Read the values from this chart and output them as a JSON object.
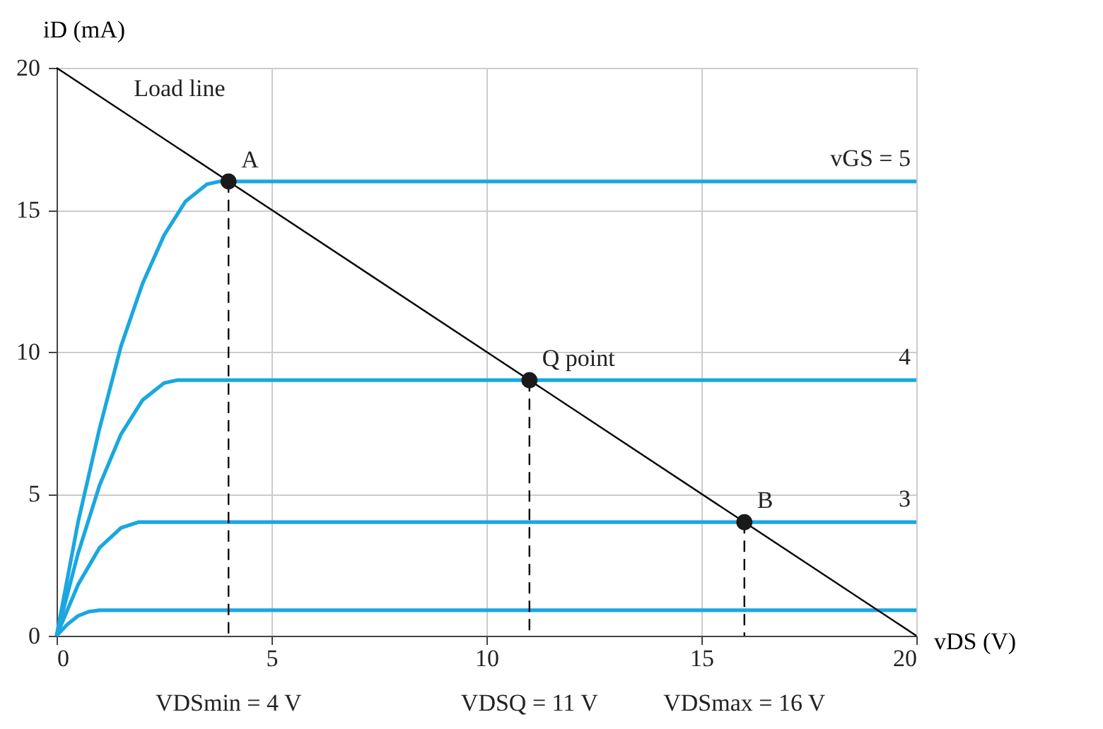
{
  "chart_data": {
    "type": "line",
    "xlabel": "vDS (V)",
    "ylabel": "iD (mA)",
    "xlim": [
      0,
      20
    ],
    "ylim": [
      0,
      20
    ],
    "xticks": [
      0,
      5,
      10,
      15,
      20
    ],
    "yticks": [
      0,
      5,
      10,
      15,
      20
    ],
    "grid": true,
    "marker": "none",
    "series": [
      {
        "name": "vGS = 5",
        "color": "#1aa7e0",
        "x": [
          0,
          0.5,
          1,
          1.5,
          2,
          2.5,
          3,
          3.5,
          3.8,
          20
        ],
        "values": [
          0,
          4,
          7.3,
          10.2,
          12.4,
          14.1,
          15.3,
          15.9,
          16,
          16
        ]
      },
      {
        "name": "4",
        "color": "#1aa7e0",
        "x": [
          0,
          0.5,
          1,
          1.5,
          2,
          2.5,
          2.8,
          20
        ],
        "values": [
          0,
          2.9,
          5.3,
          7.1,
          8.3,
          8.9,
          9,
          9
        ]
      },
      {
        "name": "3",
        "color": "#1aa7e0",
        "x": [
          0,
          0.5,
          1,
          1.5,
          1.9,
          20
        ],
        "values": [
          0,
          1.8,
          3.1,
          3.8,
          4,
          4
        ]
      },
      {
        "color": "#1aa7e0",
        "x": [
          0,
          0.25,
          0.5,
          0.75,
          1,
          20
        ],
        "values": [
          0,
          0.4,
          0.7,
          0.85,
          0.9,
          0.9
        ]
      },
      {
        "color": "#000000",
        "x": [
          0,
          20
        ],
        "values": [
          20,
          0
        ]
      },
      {
        "color": "#000000",
        "line_style": "dashed",
        "x": [
          4,
          4
        ],
        "values": [
          16,
          0
        ]
      },
      {
        "color": "#000000",
        "line_style": "dashed",
        "x": [
          11,
          11
        ],
        "values": [
          9,
          0
        ]
      },
      {
        "color": "#000000",
        "line_style": "dashed",
        "x": [
          16,
          16
        ],
        "values": [
          4,
          0
        ]
      },
      {
        "type": "scatter",
        "marker": "circle",
        "color": "#1a1a1a",
        "x": [
          4,
          11,
          16
        ],
        "values": [
          16,
          9,
          4
        ]
      }
    ],
    "annotations": [
      {
        "text": "Load line",
        "x": 1.5,
        "y": 18.5
      },
      {
        "text": "A",
        "x": 4,
        "y": 16
      },
      {
        "text": "Q point",
        "x": 11,
        "y": 9
      },
      {
        "text": "B",
        "x": 16,
        "y": 4
      },
      "VDSmin = 4 V",
      "VDSQ = 11 V",
      "VDSmax = 16 V"
    ]
  }
}
